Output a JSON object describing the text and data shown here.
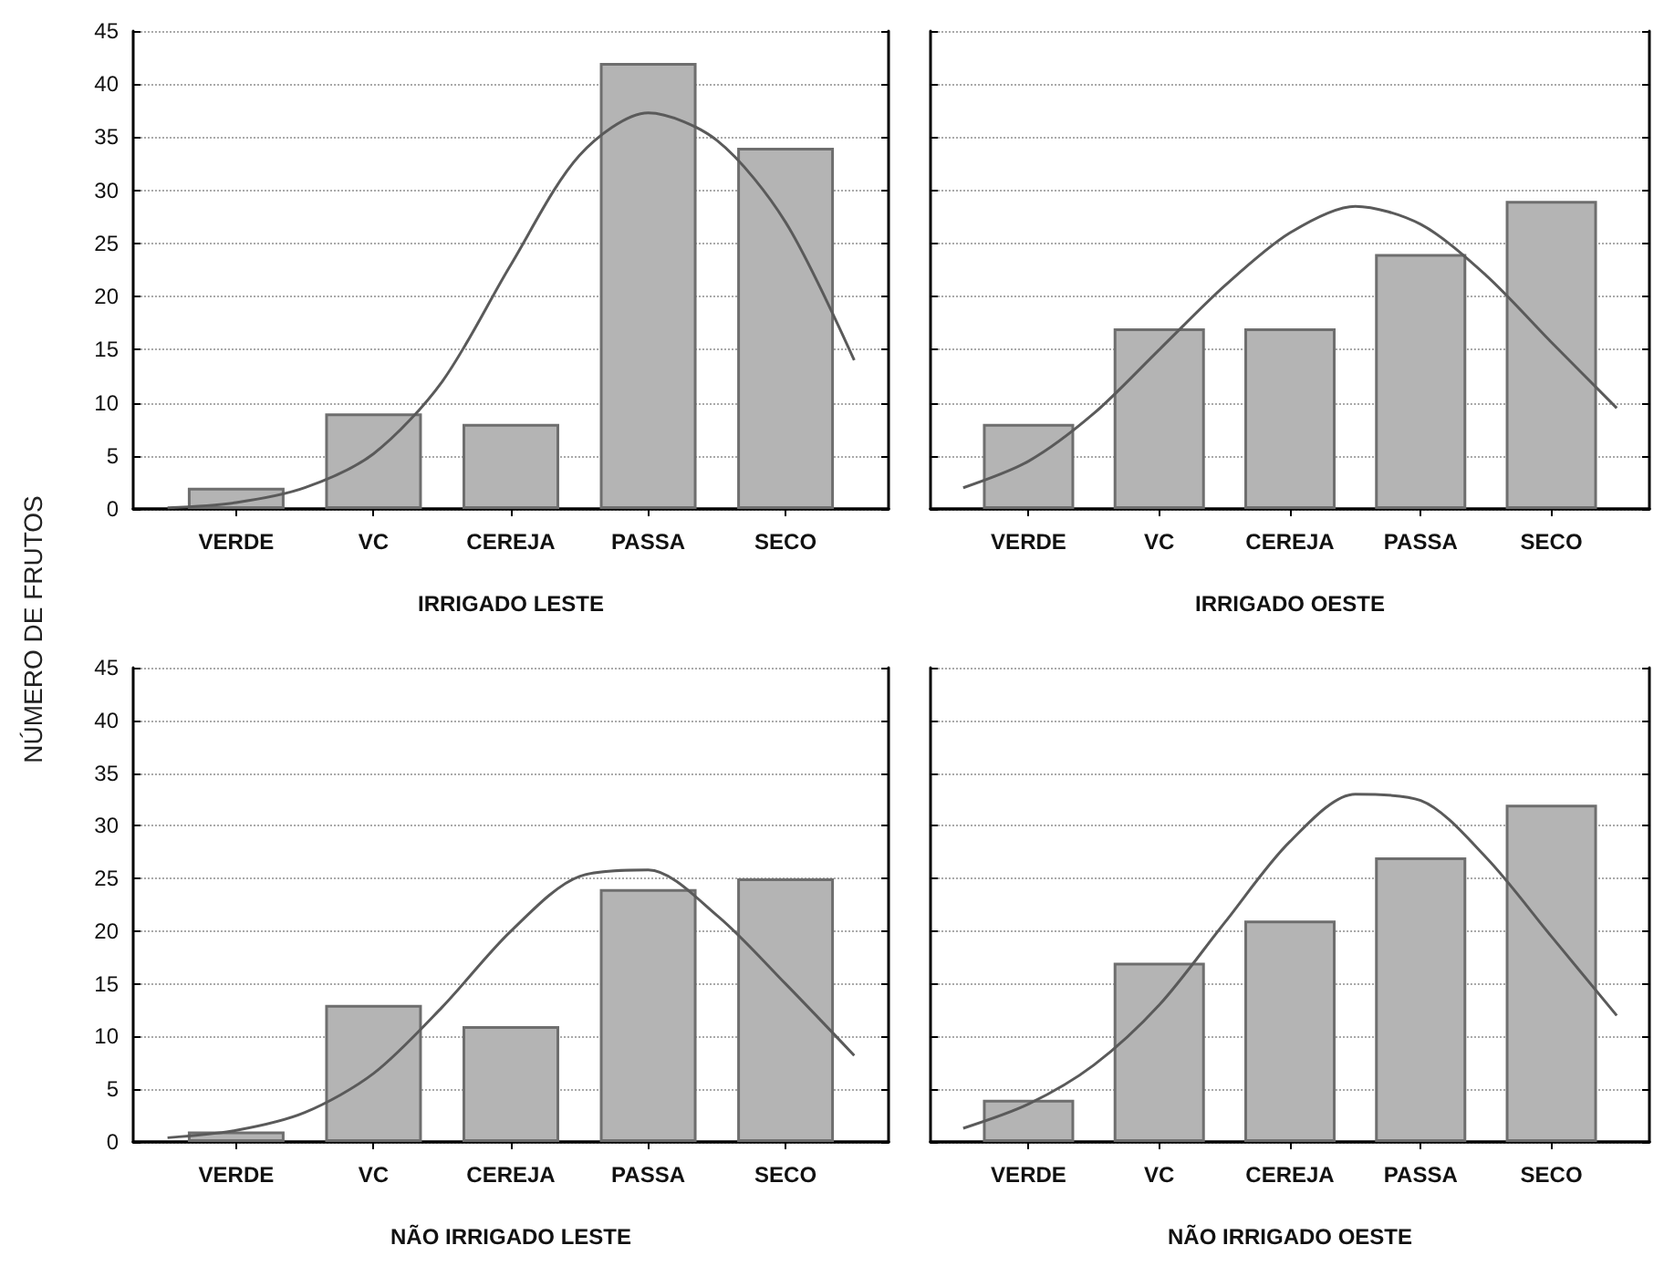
{
  "chart_data": [
    {
      "type": "bar",
      "xlabel": "IRRIGADO LESTE",
      "ylabel": "NÚMERO DE FRUTOS",
      "categories": [
        null,
        "VERDE",
        null,
        "VC",
        null,
        "CEREJA",
        null,
        "PASSA",
        null,
        "SECO",
        null
      ],
      "ylim": [
        0,
        45
      ],
      "yticks": [
        0,
        5,
        10,
        15,
        20,
        25,
        30,
        35,
        40,
        45
      ],
      "grid": "y",
      "series": [
        {
          "color": "#b4b4b4",
          "values": [
            null,
            2,
            null,
            9,
            null,
            8,
            null,
            42,
            null,
            34,
            null
          ]
        },
        {
          "type": "line",
          "color": "#5a5a5a",
          "values": [
            0.1,
            0.6,
            2.0,
            5.2,
            12,
            23,
            33.3,
            37.3,
            34.7,
            27,
            14
          ]
        }
      ]
    },
    {
      "type": "bar",
      "xlabel": "IRRIGADO OESTE",
      "categories": [
        null,
        "VERDE",
        null,
        "VC",
        null,
        "CEREJA",
        null,
        "PASSA",
        null,
        "SECO",
        null
      ],
      "ylim": [
        0,
        45
      ],
      "yticks": [
        0,
        5,
        10,
        15,
        20,
        25,
        30,
        35,
        40,
        45
      ],
      "grid": "y",
      "tick_labels": "x",
      "series": [
        {
          "color": "#b4b4b4",
          "values": [
            null,
            8,
            null,
            17,
            null,
            17,
            null,
            24,
            null,
            29,
            null
          ]
        },
        {
          "type": "line",
          "color": "#5a5a5a",
          "values": [
            2.0,
            4.5,
            9,
            15,
            21,
            26,
            28.5,
            26.8,
            22,
            15.7,
            9.5
          ]
        }
      ]
    },
    {
      "type": "bar",
      "xlabel": "NÃO IRRIGADO LESTE",
      "categories": [
        null,
        "VERDE",
        null,
        "VC",
        null,
        "CEREJA",
        null,
        "PASSA",
        null,
        "SECO",
        null
      ],
      "ylim": [
        0,
        45
      ],
      "yticks": [
        0,
        5,
        10,
        15,
        20,
        25,
        30,
        35,
        40,
        45
      ],
      "grid": "y",
      "series": [
        {
          "color": "#b4b4b4",
          "values": [
            null,
            1,
            null,
            13,
            null,
            11,
            null,
            24,
            null,
            25,
            null
          ]
        },
        {
          "type": "line",
          "color": "#5a5a5a",
          "values": [
            0.4,
            1.1,
            2.8,
            6.5,
            12.8,
            20,
            25.2,
            25.8,
            21.5,
            15,
            8.2
          ]
        }
      ]
    },
    {
      "type": "bar",
      "xlabel": "NÃO IRRIGADO OESTE",
      "categories": [
        null,
        "VERDE",
        null,
        "VC",
        null,
        "CEREJA",
        null,
        "PASSA",
        null,
        "SECO",
        null
      ],
      "ylim": [
        0,
        45
      ],
      "yticks": [
        0,
        5,
        10,
        15,
        20,
        25,
        30,
        35,
        40,
        45
      ],
      "grid": "y",
      "tick_labels": "x",
      "series": [
        {
          "color": "#b4b4b4",
          "values": [
            null,
            4,
            null,
            17,
            null,
            21,
            null,
            27,
            null,
            32,
            null
          ]
        },
        {
          "type": "line",
          "color": "#5a5a5a",
          "values": [
            1.3,
            3.6,
            7.3,
            13,
            20.8,
            28.5,
            33,
            32.4,
            27,
            19.5,
            12
          ]
        }
      ]
    }
  ]
}
